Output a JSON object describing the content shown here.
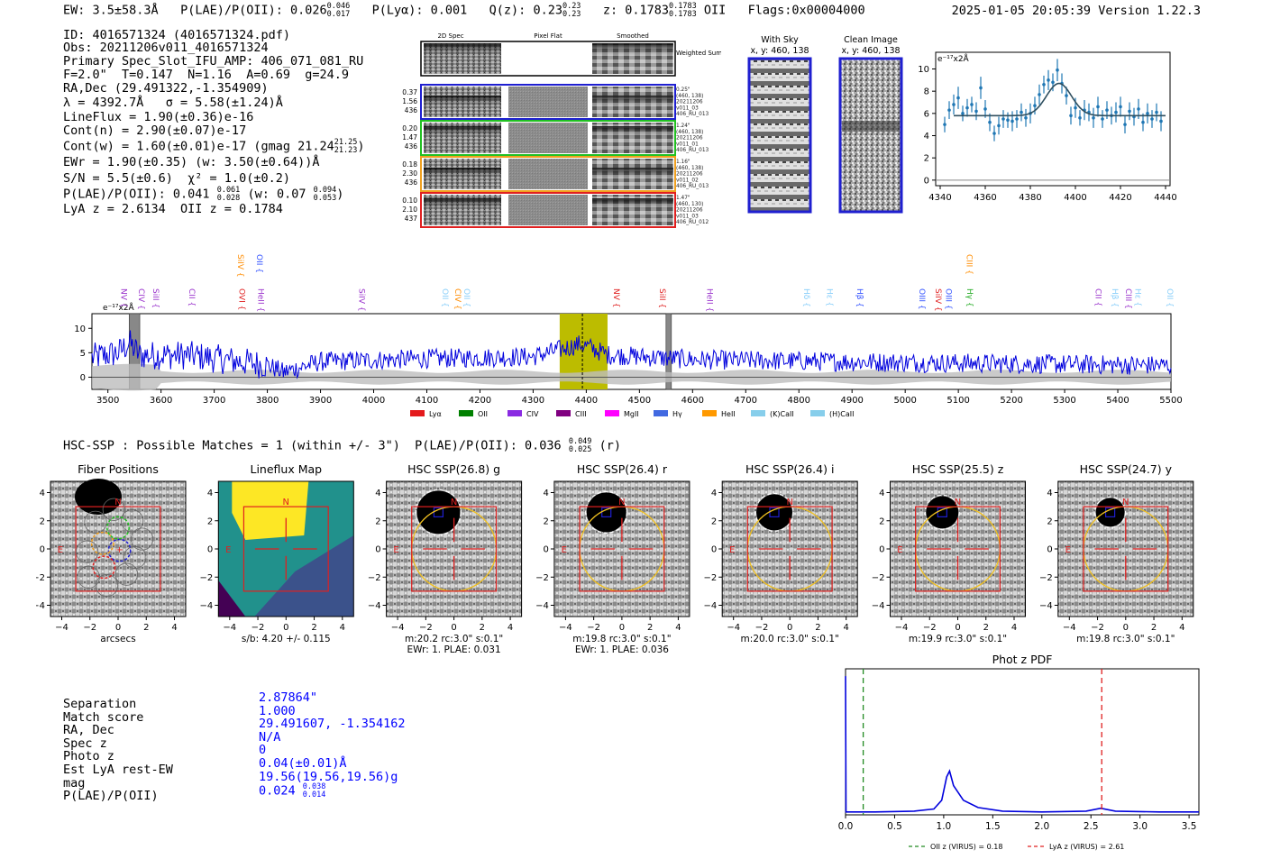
{
  "header": {
    "ew": "EW: 3.5±58.3Å",
    "plae": "P(LAE)/P(OII): 0.026",
    "plae_hi": "0.046",
    "plae_lo": "0.017",
    "plya": "P(Lyα): 0.001",
    "qz": "Q(z): 0.23",
    "qz_hi": "0.23",
    "qz_lo": "0.23",
    "z": "z: 0.1783",
    "z_hi": "0.1783",
    "z_lo": "0.1783",
    "z_line": "OII",
    "flags": "Flags:0x00004000",
    "datetime": "2025-01-05 20:05:39",
    "version": "Version 1.22.3"
  },
  "info": {
    "id": "ID: 4016571324 (4016571324.pdf)",
    "obs": "Obs: 20211206v011_4016571324",
    "primary": "Primary Spec_Slot_IFU_AMP: 406_071_081_RU",
    "params": "F=2.0\"  T=0.147  N=1.16  A=0.69  g=24.9",
    "radec": "RA,Dec (29.491322,-1.354909)",
    "lambda": "λ = 4392.7Å   σ = 5.58(±1.24)Å",
    "lineflux": "LineFlux = 1.90(±0.36)e-16",
    "contn": "Cont(n) = 2.90(±0.07)e-17",
    "contw": "Cont(w) = 1.60(±0.01)e-17 (gmag 21.24",
    "contw_hi": "21.25",
    "contw_lo": "21.23",
    "contw_end": ")",
    "ewr": "EWr = 1.90(±0.35) (w: 3.50(±0.64))Å",
    "sn": "S/N = 5.5(±0.6)  χ² = 1.0(±0.2)",
    "plae": "P(LAE)/P(OII): 0.041",
    "plae_hi": "0.061",
    "plae_lo": "0.028",
    "plae_w": "(w: 0.07",
    "plae_w_hi": "0.094",
    "plae_w_lo": "0.053",
    "plae_end": ")",
    "lyaz": "LyA z = 2.6134  OII z = 0.1784"
  },
  "cutouts": {
    "col_2d": "2D Spec",
    "col_flat": "Pixel Flat",
    "col_smooth": "Smoothed",
    "weighted": "Weighted Sum",
    "fibers": [
      {
        "vals": [
          "0.37",
          "1.56",
          "436"
        ],
        "color": "#1f1fd0",
        "stamp": [
          "0.25\"",
          "(460, 138)",
          "20211206",
          "v011_03",
          "406_RU_013"
        ]
      },
      {
        "vals": [
          "0.20",
          "1.47",
          "436"
        ],
        "color": "#22c022",
        "stamp": [
          "1.24\"",
          "(460, 138)",
          "20211206",
          "v011_01",
          "406_RU_013"
        ]
      },
      {
        "vals": [
          "0.18",
          "2.30",
          "436"
        ],
        "color": "#f0a020",
        "stamp": [
          "1.16\"",
          "(460, 138)",
          "20211206",
          "v011_02",
          "406_RU_013"
        ]
      },
      {
        "vals": [
          "0.10",
          "2.10",
          "437"
        ],
        "color": "#e02020",
        "stamp": [
          "1.47\"",
          "(460, 130)",
          "20211206",
          "v011_03",
          "406_RU_012"
        ]
      }
    ],
    "with_sky": "With Sky",
    "with_sky_xy": "x, y: 460, 138",
    "clean": "Clean Image",
    "clean_xy": "x, y: 460, 138"
  },
  "chart_data": [
    {
      "type": "line",
      "name": "line-fit",
      "ylabel_scale": "e⁻¹⁷x2Å",
      "xlim": [
        4338,
        4442
      ],
      "ylim": [
        -0.5,
        11.5
      ],
      "xticks": [
        4340,
        4360,
        4380,
        4400,
        4420,
        4440
      ],
      "yticks": [
        0,
        2,
        4,
        6,
        8,
        10
      ],
      "points": [
        {
          "x": 4342,
          "y": 5.0,
          "e": 0.7
        },
        {
          "x": 4344,
          "y": 6.3,
          "e": 0.8
        },
        {
          "x": 4346,
          "y": 6.8,
          "e": 0.9
        },
        {
          "x": 4348,
          "y": 7.4,
          "e": 1.0
        },
        {
          "x": 4350,
          "y": 6.0,
          "e": 0.7
        },
        {
          "x": 4352,
          "y": 6.5,
          "e": 0.8
        },
        {
          "x": 4354,
          "y": 6.8,
          "e": 0.7
        },
        {
          "x": 4356,
          "y": 6.2,
          "e": 0.8
        },
        {
          "x": 4358,
          "y": 8.3,
          "e": 1.0
        },
        {
          "x": 4360,
          "y": 6.4,
          "e": 0.8
        },
        {
          "x": 4362,
          "y": 5.2,
          "e": 0.8
        },
        {
          "x": 4364,
          "y": 4.2,
          "e": 0.7
        },
        {
          "x": 4366,
          "y": 4.9,
          "e": 0.8
        },
        {
          "x": 4368,
          "y": 5.5,
          "e": 0.8
        },
        {
          "x": 4370,
          "y": 5.4,
          "e": 0.7
        },
        {
          "x": 4372,
          "y": 5.3,
          "e": 0.9
        },
        {
          "x": 4374,
          "y": 5.5,
          "e": 0.8
        },
        {
          "x": 4376,
          "y": 6.1,
          "e": 0.8
        },
        {
          "x": 4378,
          "y": 5.6,
          "e": 0.8
        },
        {
          "x": 4380,
          "y": 6.0,
          "e": 0.9
        },
        {
          "x": 4382,
          "y": 6.7,
          "e": 0.8
        },
        {
          "x": 4384,
          "y": 7.7,
          "e": 0.9
        },
        {
          "x": 4386,
          "y": 8.6,
          "e": 0.8
        },
        {
          "x": 4388,
          "y": 9.0,
          "e": 0.9
        },
        {
          "x": 4390,
          "y": 8.8,
          "e": 0.8
        },
        {
          "x": 4392,
          "y": 9.9,
          "e": 1.0
        },
        {
          "x": 4394,
          "y": 8.7,
          "e": 0.9
        },
        {
          "x": 4396,
          "y": 7.6,
          "e": 0.8
        },
        {
          "x": 4398,
          "y": 5.8,
          "e": 0.8
        },
        {
          "x": 4400,
          "y": 6.5,
          "e": 0.9
        },
        {
          "x": 4402,
          "y": 5.6,
          "e": 0.7
        },
        {
          "x": 4404,
          "y": 6.3,
          "e": 0.9
        },
        {
          "x": 4406,
          "y": 6.1,
          "e": 0.8
        },
        {
          "x": 4408,
          "y": 5.6,
          "e": 0.9
        },
        {
          "x": 4410,
          "y": 6.6,
          "e": 0.9
        },
        {
          "x": 4412,
          "y": 5.5,
          "e": 0.8
        },
        {
          "x": 4414,
          "y": 6.3,
          "e": 0.8
        },
        {
          "x": 4416,
          "y": 5.8,
          "e": 0.8
        },
        {
          "x": 4418,
          "y": 6.1,
          "e": 0.9
        },
        {
          "x": 4420,
          "y": 6.6,
          "e": 0.9
        },
        {
          "x": 4422,
          "y": 5.0,
          "e": 0.8
        },
        {
          "x": 4424,
          "y": 6.2,
          "e": 0.8
        },
        {
          "x": 4426,
          "y": 5.7,
          "e": 0.8
        },
        {
          "x": 4428,
          "y": 6.4,
          "e": 0.9
        },
        {
          "x": 4430,
          "y": 5.2,
          "e": 0.8
        },
        {
          "x": 4432,
          "y": 6.0,
          "e": 0.9
        },
        {
          "x": 4434,
          "y": 5.5,
          "e": 0.8
        },
        {
          "x": 4436,
          "y": 6.1,
          "e": 0.8
        },
        {
          "x": 4438,
          "y": 5.3,
          "e": 0.9
        }
      ],
      "model": {
        "continuum": 5.8,
        "amplitude": 2.9,
        "center": 4392.7,
        "sigma": 5.58,
        "x_range": [
          4346,
          4440
        ]
      }
    },
    {
      "type": "line",
      "name": "full-spectrum",
      "ylabel_scale": "e⁻¹⁷x2Å",
      "xlim": [
        3470,
        5500
      ],
      "ylim": [
        -2.5,
        13
      ],
      "xticks": [
        3500,
        3600,
        3700,
        3800,
        3900,
        4000,
        4100,
        4200,
        4300,
        4400,
        4500,
        4600,
        4700,
        4800,
        4900,
        5000,
        5100,
        5200,
        5300,
        5400,
        5500
      ],
      "yticks": [
        0,
        5,
        10
      ],
      "highlight_range": [
        4350,
        4440
      ],
      "line_center": 4392.7,
      "masked": [
        [
          3540,
          3560
        ],
        [
          4550,
          4560
        ]
      ],
      "series_profile": [
        {
          "x": 3470,
          "y": 4.0
        },
        {
          "x": 3520,
          "y": 5.0
        },
        {
          "x": 3540,
          "y": 7.0
        },
        {
          "x": 3560,
          "y": 4.5
        },
        {
          "x": 3650,
          "y": 4.5
        },
        {
          "x": 3800,
          "y": 2.5
        },
        {
          "x": 3830,
          "y": 1.0
        },
        {
          "x": 3900,
          "y": 3.2
        },
        {
          "x": 4100,
          "y": 3.8
        },
        {
          "x": 4300,
          "y": 4.2
        },
        {
          "x": 4390,
          "y": 6.8
        },
        {
          "x": 4440,
          "y": 4.6
        },
        {
          "x": 4600,
          "y": 3.6
        },
        {
          "x": 5000,
          "y": 3.0
        },
        {
          "x": 5500,
          "y": 2.4
        }
      ],
      "line_labels": [
        {
          "x": 3520,
          "label": "NV",
          "color": "#9932cc",
          "row": 1
        },
        {
          "x": 3553,
          "label": "CIV",
          "color": "#9932cc",
          "row": 1
        },
        {
          "x": 3580,
          "label": "SiII",
          "color": "#9932cc",
          "row": 1
        },
        {
          "x": 3648,
          "label": "CII",
          "color": "#9932cc",
          "row": 1
        },
        {
          "x": 3740,
          "label": "SiIV",
          "color": "#ff8c00",
          "row": 0
        },
        {
          "x": 3742,
          "label": "OVI",
          "color": "#e02020",
          "row": 1
        },
        {
          "x": 3775,
          "label": "OII",
          "color": "#3050ff",
          "row": 0
        },
        {
          "x": 3778,
          "label": "HeII",
          "color": "#9932cc",
          "row": 1
        },
        {
          "x": 3968,
          "label": "SiIV",
          "color": "#9932cc",
          "row": 1
        },
        {
          "x": 4125,
          "label": "OII",
          "color": "#87cefa",
          "row": 1
        },
        {
          "x": 4148,
          "label": "CIV",
          "color": "#ff8c00",
          "row": 1
        },
        {
          "x": 4165,
          "label": "OII",
          "color": "#87cefa",
          "row": 1
        },
        {
          "x": 4447,
          "label": "NV",
          "color": "#e02020",
          "row": 1
        },
        {
          "x": 4533,
          "label": "SiII",
          "color": "#e02020",
          "row": 1
        },
        {
          "x": 4622,
          "label": "HeII",
          "color": "#9932cc",
          "row": 1
        },
        {
          "x": 4805,
          "label": "Hδ",
          "color": "#87cefa",
          "row": 1
        },
        {
          "x": 4848,
          "label": "Hε",
          "color": "#87cefa",
          "row": 1
        },
        {
          "x": 4905,
          "label": "Hβ",
          "color": "#3050ff",
          "row": 1
        },
        {
          "x": 5022,
          "label": "OIII",
          "color": "#3050ff",
          "row": 1
        },
        {
          "x": 5052,
          "label": "SiIV",
          "color": "#e02020",
          "row": 1
        },
        {
          "x": 5072,
          "label": "OIII",
          "color": "#3050ff",
          "row": 1
        },
        {
          "x": 5111,
          "label": "CIII",
          "color": "#ff8c00",
          "row": 0
        },
        {
          "x": 5112,
          "label": "Hγ",
          "color": "#22aa22",
          "row": 1
        },
        {
          "x": 5353,
          "label": "CII",
          "color": "#9932cc",
          "row": 1
        },
        {
          "x": 5385,
          "label": "Hβ",
          "color": "#87cefa",
          "row": 1
        },
        {
          "x": 5410,
          "label": "CIII",
          "color": "#9932cc",
          "row": 1
        },
        {
          "x": 5428,
          "label": "Hε",
          "color": "#87cefa",
          "row": 1
        },
        {
          "x": 5488,
          "label": "OII",
          "color": "#87cefa",
          "row": 1
        }
      ],
      "legend": [
        {
          "label": "Lyα",
          "color": "#e41a1c"
        },
        {
          "label": "OII",
          "color": "#008000"
        },
        {
          "label": "CIV",
          "color": "#8a2be2"
        },
        {
          "label": "CIII",
          "color": "#800080"
        },
        {
          "label": "MgII",
          "color": "#ff00ff"
        },
        {
          "label": "Hγ",
          "color": "#4169e1"
        },
        {
          "label": "HeII",
          "color": "#ff9900"
        },
        {
          "label": "(K)CaII",
          "color": "#87ceeb"
        },
        {
          "label": "(H)CaII",
          "color": "#87ceeb"
        }
      ]
    },
    {
      "type": "line",
      "name": "phot-z-pdf",
      "title": "Phot z PDF",
      "xlim": [
        0,
        3.6
      ],
      "ylim": [
        0,
        1.0
      ],
      "xticks": [
        0.0,
        0.5,
        1.0,
        1.5,
        2.0,
        2.5,
        3.0,
        3.5
      ],
      "pdf": [
        {
          "x": 0.0,
          "y": 0.95
        },
        {
          "x": 0.005,
          "y": 0.02
        },
        {
          "x": 0.3,
          "y": 0.02
        },
        {
          "x": 0.7,
          "y": 0.025
        },
        {
          "x": 0.9,
          "y": 0.04
        },
        {
          "x": 0.98,
          "y": 0.1
        },
        {
          "x": 1.03,
          "y": 0.26
        },
        {
          "x": 1.06,
          "y": 0.3
        },
        {
          "x": 1.1,
          "y": 0.2
        },
        {
          "x": 1.2,
          "y": 0.1
        },
        {
          "x": 1.35,
          "y": 0.05
        },
        {
          "x": 1.6,
          "y": 0.025
        },
        {
          "x": 2.0,
          "y": 0.02
        },
        {
          "x": 2.45,
          "y": 0.025
        },
        {
          "x": 2.6,
          "y": 0.045
        },
        {
          "x": 2.75,
          "y": 0.025
        },
        {
          "x": 3.2,
          "y": 0.02
        },
        {
          "x": 3.6,
          "y": 0.02
        }
      ],
      "oii_z": 0.18,
      "lya_z": 2.61,
      "legend": [
        {
          "label": "OII z (VIRUS) = 0.18",
          "color": "#228b22"
        },
        {
          "label": "LyA z (VIRUS) = 2.61",
          "color": "#e02020"
        }
      ]
    }
  ],
  "hsc": {
    "summary": "HSC-SSP : Possible Matches = 1 (within +/- 3\")  P(LAE)/P(OII): 0.036",
    "summary_hi": "0.049",
    "summary_lo": "0.025",
    "summary_end": "(r)",
    "ticks": [
      "−4",
      "−2",
      "0",
      "2",
      "4"
    ],
    "panels": [
      {
        "title": "Fiber Positions",
        "cap1": "arcsecs",
        "cap2": ""
      },
      {
        "title": "Lineflux Map",
        "cap1": "s/b: 4.20 +/- 0.115",
        "cap2": ""
      },
      {
        "title": "HSC SSP(26.8) g",
        "cap1": "m:20.2 rc:3.0\"  s:0.1\"",
        "cap2": "EWr: 1. PLAE: 0.031"
      },
      {
        "title": "HSC SSP(26.4) r",
        "cap1": "m:19.8 rc:3.0\"  s:0.1\"",
        "cap2": "EWr: 1. PLAE: 0.036"
      },
      {
        "title": "HSC SSP(26.4) i",
        "cap1": "m:20.0 rc:3.0\"  s:0.1\"",
        "cap2": ""
      },
      {
        "title": "HSC SSP(25.5) z",
        "cap1": "m:19.9 rc:3.0\"  s:0.1\"",
        "cap2": ""
      },
      {
        "title": "HSC SSP(24.7) y",
        "cap1": "m:19.8 rc:3.0\"  s:0.1\"",
        "cap2": ""
      }
    ],
    "compass_n": "N",
    "compass_e": "E"
  },
  "match": {
    "labels": [
      "Separation",
      "Match score",
      "RA, Dec",
      "Spec z",
      "Photo z",
      "Est LyA rest-EW",
      "mag",
      "P(LAE)/P(OII)"
    ],
    "values": [
      "2.87864\"",
      "1.000",
      "29.491607, -1.354162",
      "N/A",
      "0",
      "0.04(±0.01)Å",
      "19.56(19.56,19.56)g",
      "0.024"
    ],
    "plae_hi": "0.038",
    "plae_lo": "0.014"
  }
}
